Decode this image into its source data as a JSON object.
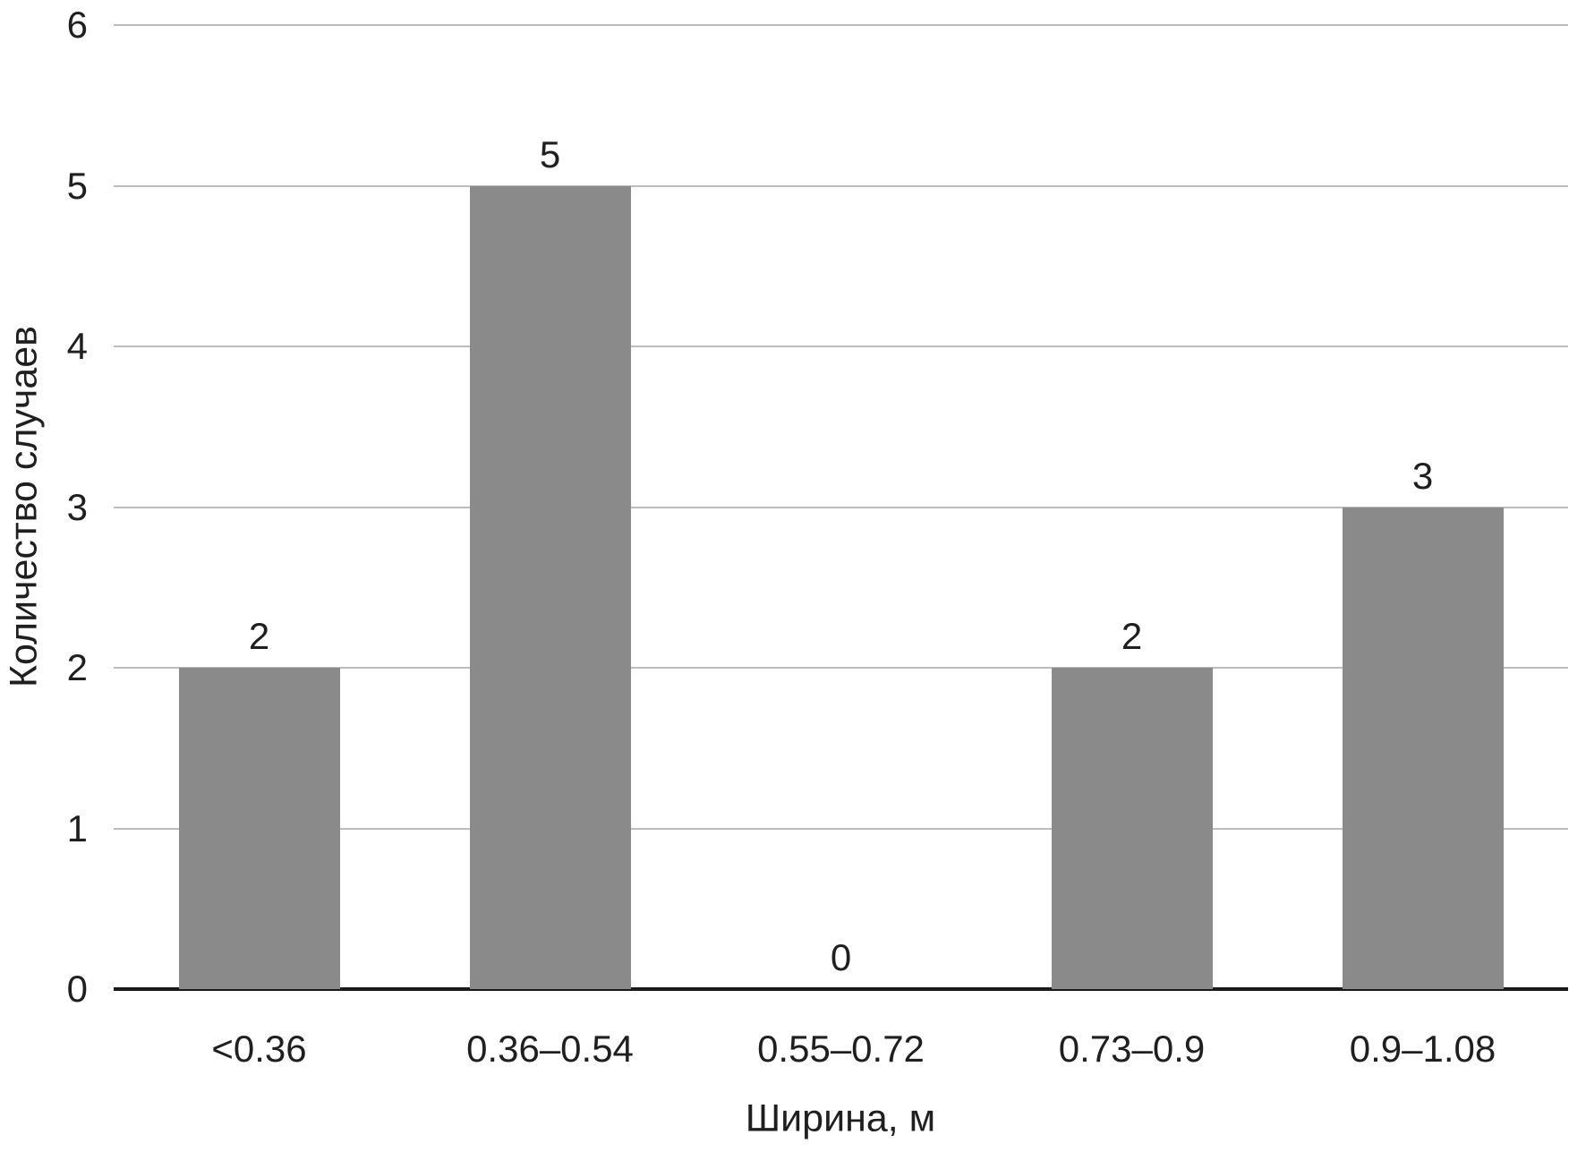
{
  "chart_data": {
    "type": "bar",
    "categories": [
      "<0.36",
      "0.36–0.54",
      "0.55–0.72",
      "0.73–0.9",
      "0.9–1.08"
    ],
    "values": [
      2,
      5,
      0,
      2,
      3
    ],
    "data_labels": [
      "2",
      "5",
      "0",
      "2",
      "3"
    ],
    "title": "",
    "xlabel": "Ширина, м",
    "ylabel": "Количество случаев",
    "ylim": [
      0,
      6
    ],
    "yticks": [
      0,
      1,
      2,
      3,
      4,
      5,
      6
    ],
    "grid": "horizontal-gridlines-on",
    "legend": "none",
    "colors": {
      "bar": "#8a8a8a",
      "gridline": "#bdbdbd",
      "axis_line": "#1a1a1a",
      "text": "#1f1f1f",
      "background": "#ffffff"
    }
  }
}
